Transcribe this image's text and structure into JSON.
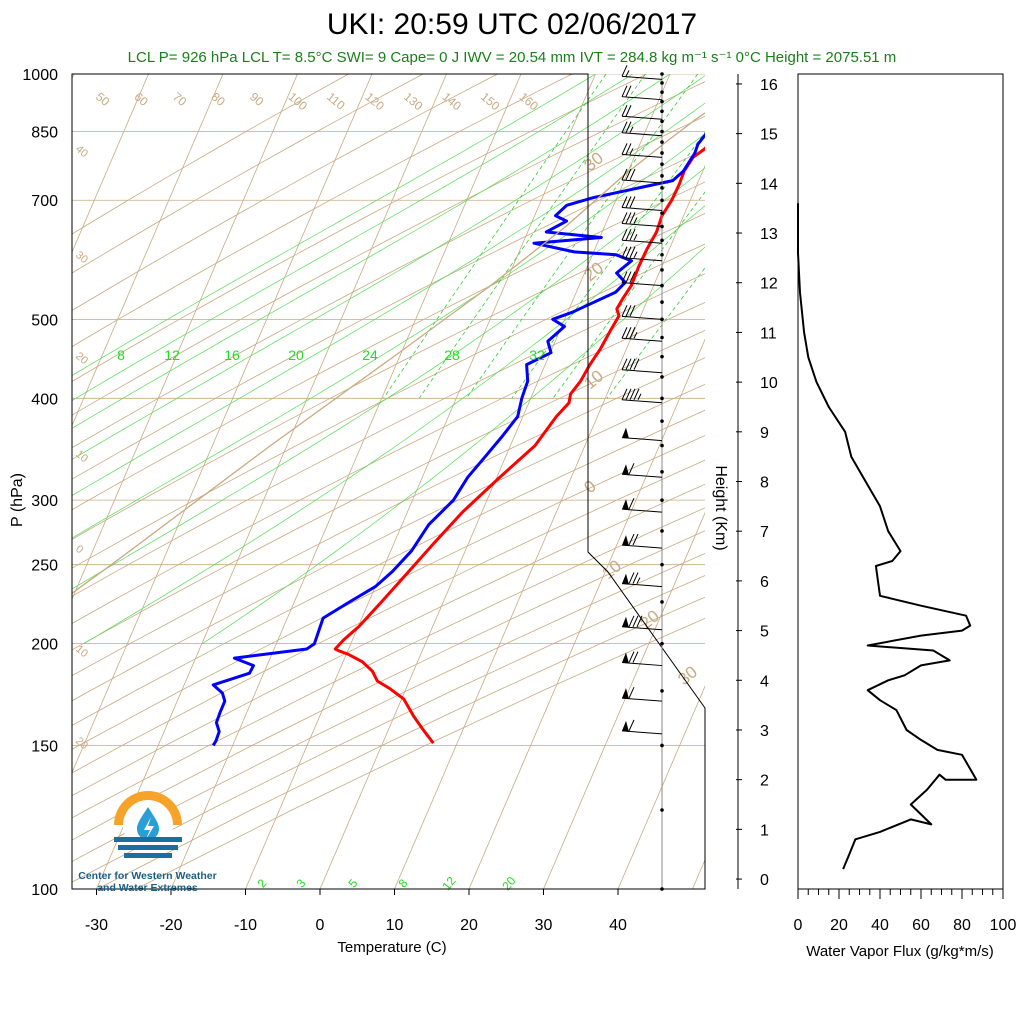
{
  "title": "UKI: 20:59 UTC 02/06/2017",
  "stats_line": "LCL P= 926 hPa  LCL T= 8.5°C  SWI= 9  Cape= 0 J  IWV = 20.54 mm  IVT = 284.8 kg m⁻¹ s⁻¹  0°C Height = 2075.51 m",
  "logo": {
    "line1": "Center for Western Weather",
    "line2": "and Water Extremes"
  },
  "colors": {
    "temperature": "#ff0000",
    "dewpoint": "#0000ff",
    "dry_adiabat": "#c8aa82",
    "moist_adiabat": "#55dd55",
    "mixing_ratio": "#33cc33",
    "stats": "#1a7f1a"
  },
  "chart_data": [
    {
      "type": "line",
      "title": "UKI: 20:59 UTC 02/06/2017",
      "xlabel": "Temperature (C)",
      "ylabel": "P (hPa)",
      "xlim": [
        -35,
        50
      ],
      "ylim": [
        1000,
        100
      ],
      "y_scale": "log",
      "x_ticks": [
        "-30",
        "-20",
        "-10",
        "0",
        "10",
        "20",
        "30",
        "40"
      ],
      "y_ticks": [
        "100",
        "150",
        "200",
        "250",
        "300",
        "400",
        "500",
        "700",
        "850",
        "1000"
      ],
      "y_tick_values": [
        100,
        150,
        200,
        250,
        300,
        400,
        500,
        700,
        850,
        1000
      ],
      "x_tick_values": [
        -30,
        -20,
        -10,
        0,
        10,
        20,
        30,
        40
      ],
      "isotherm_labels": [
        "50",
        "60",
        "70",
        "80",
        "90",
        "100",
        "110",
        "120",
        "130",
        "140",
        "150",
        "160"
      ],
      "left_labels": [
        "40",
        "30",
        "20",
        "10",
        "0",
        "10",
        "20"
      ],
      "right_labels": [
        "30",
        "20",
        "10",
        "0",
        "10",
        "20",
        "30"
      ],
      "mixing_ratio_top_labels": [
        "8",
        "12",
        "16",
        "20",
        "24",
        "28",
        "32"
      ],
      "mixing_ratio_bottom_labels": [
        "2",
        "3",
        "5",
        "8",
        "12",
        "20"
      ],
      "series": [
        {
          "name": "Temperature",
          "x": [
            15.7,
            14.6,
            12.8,
            10.8,
            9.6,
            8.9,
            9.2,
            9.4,
            9.0,
            7.9,
            7.5,
            7.6,
            7.5,
            7.1,
            7.3,
            7.0,
            6.9,
            7.0,
            6.6,
            6.4,
            7.1,
            6.8,
            6.5,
            6.0,
            5.7,
            5.1,
            5.4,
            4.5,
            3.3,
            0.4,
            -2.6,
            -4.7,
            -6.4,
            -8.3,
            -9.9,
            -11.2,
            -11.8,
            -11.2,
            -9.7,
            -7.4,
            -5.5,
            -4.3,
            -2.1,
            0.3,
            2.6,
            4.6,
            6.8
          ],
          "y": [
            1000,
            975,
            950,
            920,
            890,
            860,
            840,
            830,
            810,
            790,
            760,
            730,
            700,
            670,
            640,
            610,
            580,
            550,
            530,
            515,
            505,
            485,
            460,
            440,
            420,
            405,
            395,
            380,
            350,
            320,
            290,
            265,
            245,
            225,
            210,
            202,
            197,
            196,
            194,
            190,
            185,
            180,
            176,
            171,
            163,
            157,
            151
          ]
        },
        {
          "name": "Dewpoint",
          "x": [
            11.4,
            10.5,
            10.9,
            9.8,
            9.4,
            9.2,
            8.3,
            7.8,
            7.9,
            7.4,
            6.5,
            1.0,
            -3.2,
            -6.3,
            -7.2,
            -5.4,
            -7.5,
            0.2,
            -8.5,
            -2.6,
            3.2,
            5.6,
            4.3,
            6.0,
            5.3,
            0.6,
            -1.6,
            0.4,
            -1.0,
            0.1,
            -2.5,
            -1.4,
            -1.2,
            -0.7,
            -1.6,
            -2.7,
            -3.9,
            -4.5,
            -6.4,
            -7.2,
            -8.6,
            -10.0,
            -12.6,
            -15.2,
            -15.0,
            -14.9,
            -15.6,
            -24.8,
            -21.8,
            -21.9,
            -26.1,
            -24.4,
            -23.6,
            -23.6,
            -23.5,
            -22.6,
            -22.5,
            -22.6
          ],
          "y": [
            1000,
            980,
            950,
            910,
            880,
            865,
            845,
            820,
            800,
            760,
            740,
            720,
            705,
            690,
            670,
            660,
            640,
            630,
            620,
            605,
            600,
            590,
            570,
            555,
            540,
            510,
            500,
            490,
            470,
            455,
            440,
            420,
            400,
            380,
            360,
            340,
            320,
            300,
            280,
            260,
            245,
            235,
            225,
            215,
            205,
            200,
            197,
            192,
            188,
            184,
            178,
            174,
            170,
            165,
            160,
            156,
            152,
            150
          ]
        },
        {
          "name": "Parcel",
          "x": [
            15.7,
            12.5,
            8.5,
            6.1,
            3.6,
            -0.4,
            -5.2,
            -11.9,
            -20.8,
            -32.2,
            -46.7,
            -69.9
          ],
          "y": [
            1000,
            970,
            926,
            880,
            830,
            750,
            650,
            550,
            450,
            350,
            250,
            150
          ]
        }
      ],
      "wind_barbs": {
        "label": "Wind (kt)",
        "pressure": [
          985,
          930,
          880,
          840,
          790,
          735,
          680,
          650,
          620,
          590,
          550,
          500,
          470,
          430,
          395,
          355,
          320,
          290,
          262,
          235,
          208,
          188,
          170,
          155
        ],
        "speed_kt": [
          15,
          20,
          20,
          25,
          25,
          30,
          30,
          35,
          35,
          35,
          30,
          30,
          35,
          40,
          45,
          50,
          60,
          60,
          70,
          75,
          80,
          70,
          60,
          60
        ]
      }
    },
    {
      "type": "line",
      "xlabel": "Water Vapor Flux (g/kg*m/s)",
      "ylabel": "Height (Km)",
      "xlim": [
        0,
        100
      ],
      "ylim": [
        -0.2,
        16.2
      ],
      "x_ticks": [
        "0",
        "20",
        "40",
        "60",
        "80",
        "100"
      ],
      "x_tick_values": [
        0,
        20,
        40,
        60,
        80,
        100
      ],
      "y_ticks": [
        "0",
        "1",
        "2",
        "3",
        "4",
        "5",
        "6",
        "7",
        "8",
        "9",
        "10",
        "11",
        "12",
        "13",
        "14",
        "15",
        "16"
      ],
      "y_tick_values": [
        0,
        1,
        2,
        3,
        4,
        5,
        6,
        7,
        8,
        9,
        10,
        11,
        12,
        13,
        14,
        15,
        16
      ],
      "series": [
        {
          "name": "",
          "x": [
            22,
            25,
            28,
            40,
            55,
            65,
            55,
            63,
            69,
            72,
            79,
            87,
            80,
            68,
            60,
            53,
            48,
            40,
            34,
            44,
            52,
            60,
            74,
            66,
            34,
            60,
            80,
            84,
            82,
            60,
            40,
            38,
            46,
            50,
            44,
            40,
            33,
            26,
            23,
            15,
            9,
            5,
            3,
            1,
            0,
            0
          ],
          "y": [
            0.2,
            0.5,
            0.8,
            0.95,
            1.2,
            1.1,
            1.5,
            1.8,
            2.1,
            2.0,
            2.0,
            2.0,
            2.5,
            2.6,
            2.8,
            3.0,
            3.4,
            3.6,
            3.8,
            4.0,
            4.1,
            4.3,
            4.4,
            4.6,
            4.7,
            4.9,
            5.0,
            5.1,
            5.3,
            5.5,
            5.7,
            6.3,
            6.4,
            6.6,
            7.0,
            7.5,
            8.0,
            8.5,
            9.0,
            9.5,
            10.0,
            10.5,
            11.0,
            11.8,
            12.6,
            13.6
          ]
        }
      ]
    }
  ]
}
